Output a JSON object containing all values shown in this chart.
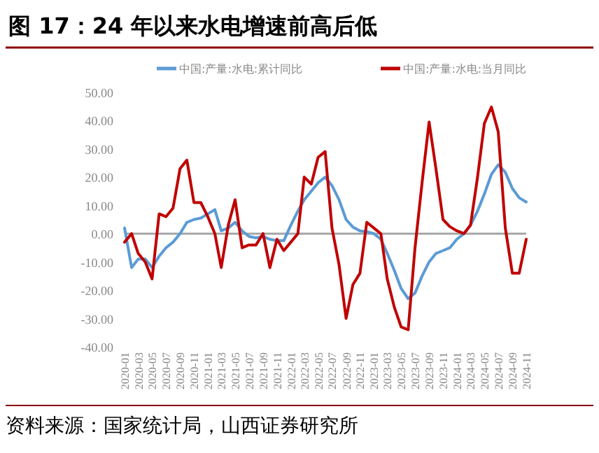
{
  "chart_data": {
    "type": "line",
    "title": "图 17：24 年以来水电增速前高后低",
    "annotations": [
      "资料来源：国家统计局，山西证券研究所"
    ],
    "x": [
      "2020-01",
      "2020-02",
      "2020-03",
      "2020-04",
      "2020-05",
      "2020-06",
      "2020-07",
      "2020-08",
      "2020-09",
      "2020-10",
      "2020-11",
      "2020-12",
      "2021-01",
      "2021-02",
      "2021-03",
      "2021-04",
      "2021-05",
      "2021-06",
      "2021-07",
      "2021-08",
      "2021-09",
      "2021-10",
      "2021-11",
      "2021-12",
      "2022-01",
      "2022-02",
      "2022-03",
      "2022-04",
      "2022-05",
      "2022-06",
      "2022-07",
      "2022-08",
      "2022-09",
      "2022-10",
      "2022-11",
      "2022-12",
      "2023-01",
      "2023-02",
      "2023-03",
      "2023-04",
      "2023-05",
      "2023-06",
      "2023-07",
      "2023-08",
      "2023-09",
      "2023-10",
      "2023-11",
      "2023-12",
      "2024-01",
      "2024-02",
      "2024-03",
      "2024-04",
      "2024-05",
      "2024-06",
      "2024-07",
      "2024-08",
      "2024-09",
      "2024-10",
      "2024-11"
    ],
    "series": [
      {
        "name": "中国:产量:水电:累计同比",
        "color": "#5b9bd5",
        "values": [
          2,
          -12,
          -9,
          -9,
          -12,
          -8,
          -5,
          -3,
          0,
          4,
          5,
          5.5,
          7,
          8.5,
          1,
          2,
          4,
          1,
          -1,
          -1.5,
          -1,
          -2,
          -2.5,
          -2.5,
          3,
          8,
          12,
          15,
          18,
          20,
          17,
          12,
          5,
          2.3,
          1,
          0.7,
          0,
          -2,
          -7,
          -13,
          -19.4,
          -23,
          -21,
          -15,
          -10,
          -7,
          -6,
          -5,
          -2,
          0,
          3,
          8,
          14,
          21,
          24.4,
          21.7,
          16,
          12.7,
          11.2
        ]
      },
      {
        "name": "中国:产量:水电:当月同比",
        "color": "#c00000",
        "values": [
          -3,
          0,
          -7,
          -10,
          -16,
          7,
          6,
          9,
          23,
          26,
          11,
          11,
          6,
          0,
          -12,
          3,
          12,
          -5,
          -4,
          -4,
          0,
          -12,
          -2,
          -6,
          -3,
          0,
          20,
          17.5,
          27,
          29,
          2,
          -11,
          -30,
          -18,
          -14,
          4,
          2,
          0,
          -16,
          -26,
          -33,
          -34,
          -5,
          18,
          39.5,
          23,
          5,
          2.5,
          1,
          0,
          3,
          20,
          39,
          44.8,
          36,
          2,
          -14,
          -14,
          -2
        ]
      }
    ],
    "xlim": [
      "2020-01",
      "2024-11"
    ],
    "xticks": [
      "2020-01",
      "2020-03",
      "2020-05",
      "2020-07",
      "2020-09",
      "2020-11",
      "2021-01",
      "2021-03",
      "2021-05",
      "2021-07",
      "2021-09",
      "2021-11",
      "2022-01",
      "2022-03",
      "2022-05",
      "2022-07",
      "2022-09",
      "2022-11",
      "2023-01",
      "2023-03",
      "2023-05",
      "2023-07",
      "2023-09",
      "2023-11",
      "2024-01",
      "2024-03",
      "2024-05",
      "2024-07",
      "2024-09",
      "2024-11"
    ],
    "ylim": [
      -40,
      50
    ],
    "yticks": [
      {
        "value": -40,
        "label": "-40.00"
      },
      {
        "value": -30,
        "label": "-30.00"
      },
      {
        "value": -20,
        "label": "-20.00"
      },
      {
        "value": -10,
        "label": "-10.00"
      },
      {
        "value": 0,
        "label": "0.00"
      },
      {
        "value": 10,
        "label": "10.00"
      },
      {
        "value": 20,
        "label": "20.00"
      },
      {
        "value": 30,
        "label": "30.00"
      },
      {
        "value": 40,
        "label": "40.00"
      },
      {
        "value": 50,
        "label": "50.00"
      }
    ],
    "ref_lines": [
      {
        "axis": "y",
        "value": 0,
        "color": "#a6a6a6"
      }
    ],
    "grid": false,
    "legend": "top",
    "marker": "none",
    "line_style": "solid"
  }
}
